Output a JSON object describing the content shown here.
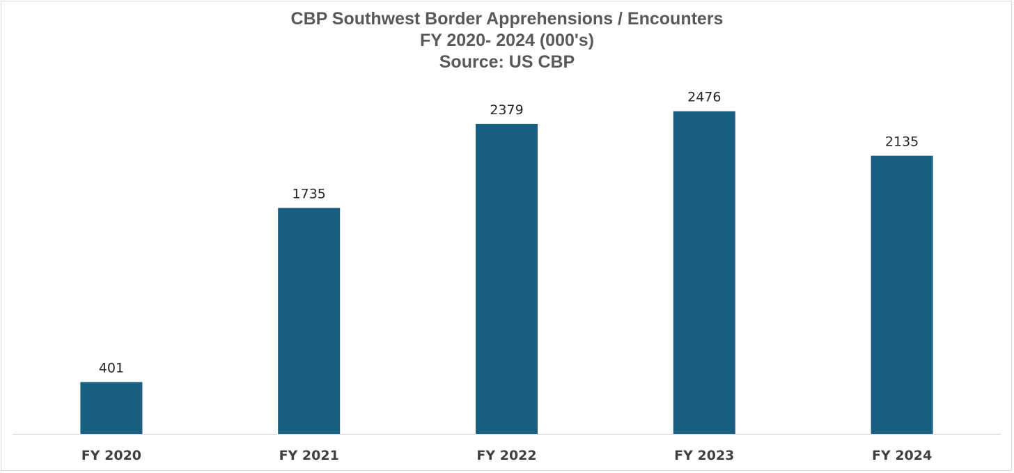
{
  "chart_data": {
    "type": "bar",
    "title_lines": [
      "CBP Southwest Border Apprehensions / Encounters",
      "FY 2020- 2024 (000's)",
      "Source: US CBP"
    ],
    "categories": [
      "FY 2020",
      "FY 2021",
      "FY 2022",
      "FY 2023",
      "FY 2024"
    ],
    "values": [
      401,
      1735,
      2379,
      2476,
      2135
    ],
    "data_labels": [
      "401",
      "1735",
      "2379",
      "2476",
      "2135"
    ],
    "xlabel": "",
    "ylabel": "",
    "ylim": [
      0,
      2800
    ],
    "grid": false,
    "legend": "none",
    "bar_color": "#185f82",
    "axis_color": "#d9d9d9"
  }
}
